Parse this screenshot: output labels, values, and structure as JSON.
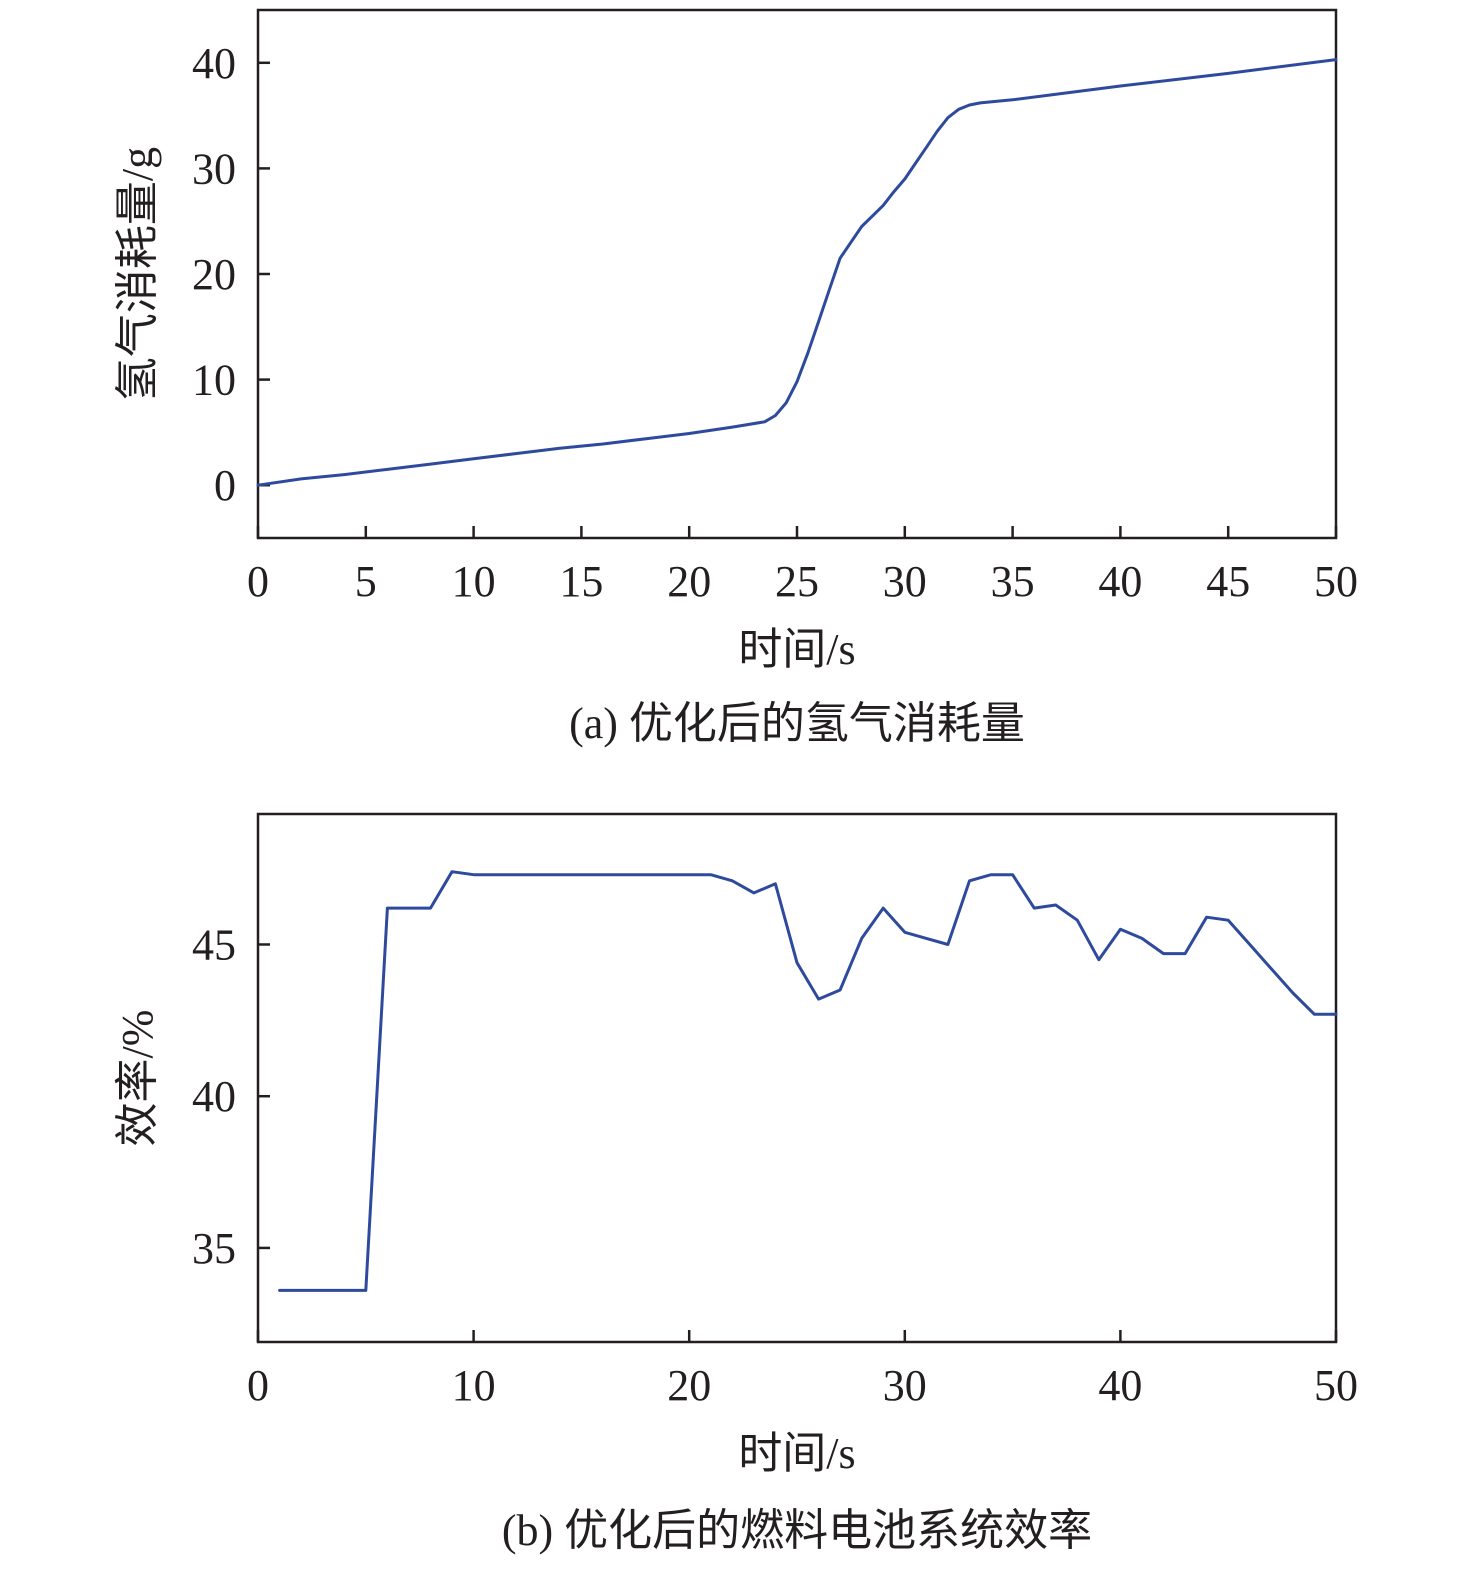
{
  "colors": {
    "series": "#2e4a9c",
    "axis": "#231f20",
    "background": "#ffffff"
  },
  "chart_data": [
    {
      "type": "line",
      "caption": "(a) 优化后的氢气消耗量",
      "xlabel": "时间/s",
      "ylabel": "氢气消耗量/g",
      "xlim": [
        0,
        50
      ],
      "ylim": [
        -5,
        45
      ],
      "xticks": [
        0,
        5,
        10,
        15,
        20,
        25,
        30,
        35,
        40,
        45,
        50
      ],
      "yticks": [
        0,
        10,
        20,
        30,
        40
      ],
      "grid": false,
      "series": [
        {
          "x": [
            0,
            2,
            4,
            6,
            8,
            10,
            12,
            14,
            16,
            18,
            20,
            22,
            23.5,
            24,
            24.5,
            25,
            25.5,
            26,
            26.5,
            27,
            27.5,
            28,
            28.5,
            29,
            29.5,
            30,
            30.5,
            31,
            31.5,
            32,
            32.5,
            33,
            33.5,
            35,
            40,
            45,
            50
          ],
          "y": [
            0,
            0.6,
            1.0,
            1.5,
            2.0,
            2.5,
            3.0,
            3.5,
            3.9,
            4.4,
            4.9,
            5.5,
            6.0,
            6.6,
            7.8,
            9.8,
            12.5,
            15.5,
            18.5,
            21.5,
            23.0,
            24.5,
            25.5,
            26.5,
            27.8,
            29.0,
            30.5,
            32.0,
            33.5,
            34.8,
            35.6,
            36.0,
            36.2,
            36.5,
            37.8,
            39.0,
            40.3
          ]
        }
      ]
    },
    {
      "type": "line",
      "caption": "(b) 优化后的燃料电池系统效率",
      "xlabel": "时间/s",
      "ylabel": "效率/%",
      "xlim": [
        0,
        50
      ],
      "ylim": [
        31.9,
        49.3
      ],
      "xticks": [
        0,
        10,
        20,
        30,
        40,
        50
      ],
      "yticks": [
        35,
        40,
        45
      ],
      "grid": false,
      "series": [
        {
          "x": [
            1,
            5,
            6,
            8,
            9,
            10,
            12,
            15,
            18,
            21,
            22,
            23,
            24,
            25,
            26,
            27,
            28,
            29,
            30,
            31,
            32,
            33,
            34,
            35,
            36,
            37,
            38,
            39,
            40,
            41,
            42,
            43,
            44,
            45,
            46,
            47,
            48,
            49,
            50
          ],
          "y": [
            33.6,
            33.6,
            46.2,
            46.2,
            47.4,
            47.3,
            47.3,
            47.3,
            47.3,
            47.3,
            47.1,
            46.7,
            47.0,
            44.4,
            43.2,
            43.5,
            45.2,
            46.2,
            45.4,
            45.2,
            45.0,
            47.1,
            47.3,
            47.3,
            46.2,
            46.3,
            45.8,
            44.5,
            45.5,
            45.2,
            44.7,
            44.7,
            45.9,
            45.8,
            45.0,
            44.2,
            43.4,
            42.7,
            42.7
          ]
        }
      ]
    }
  ]
}
